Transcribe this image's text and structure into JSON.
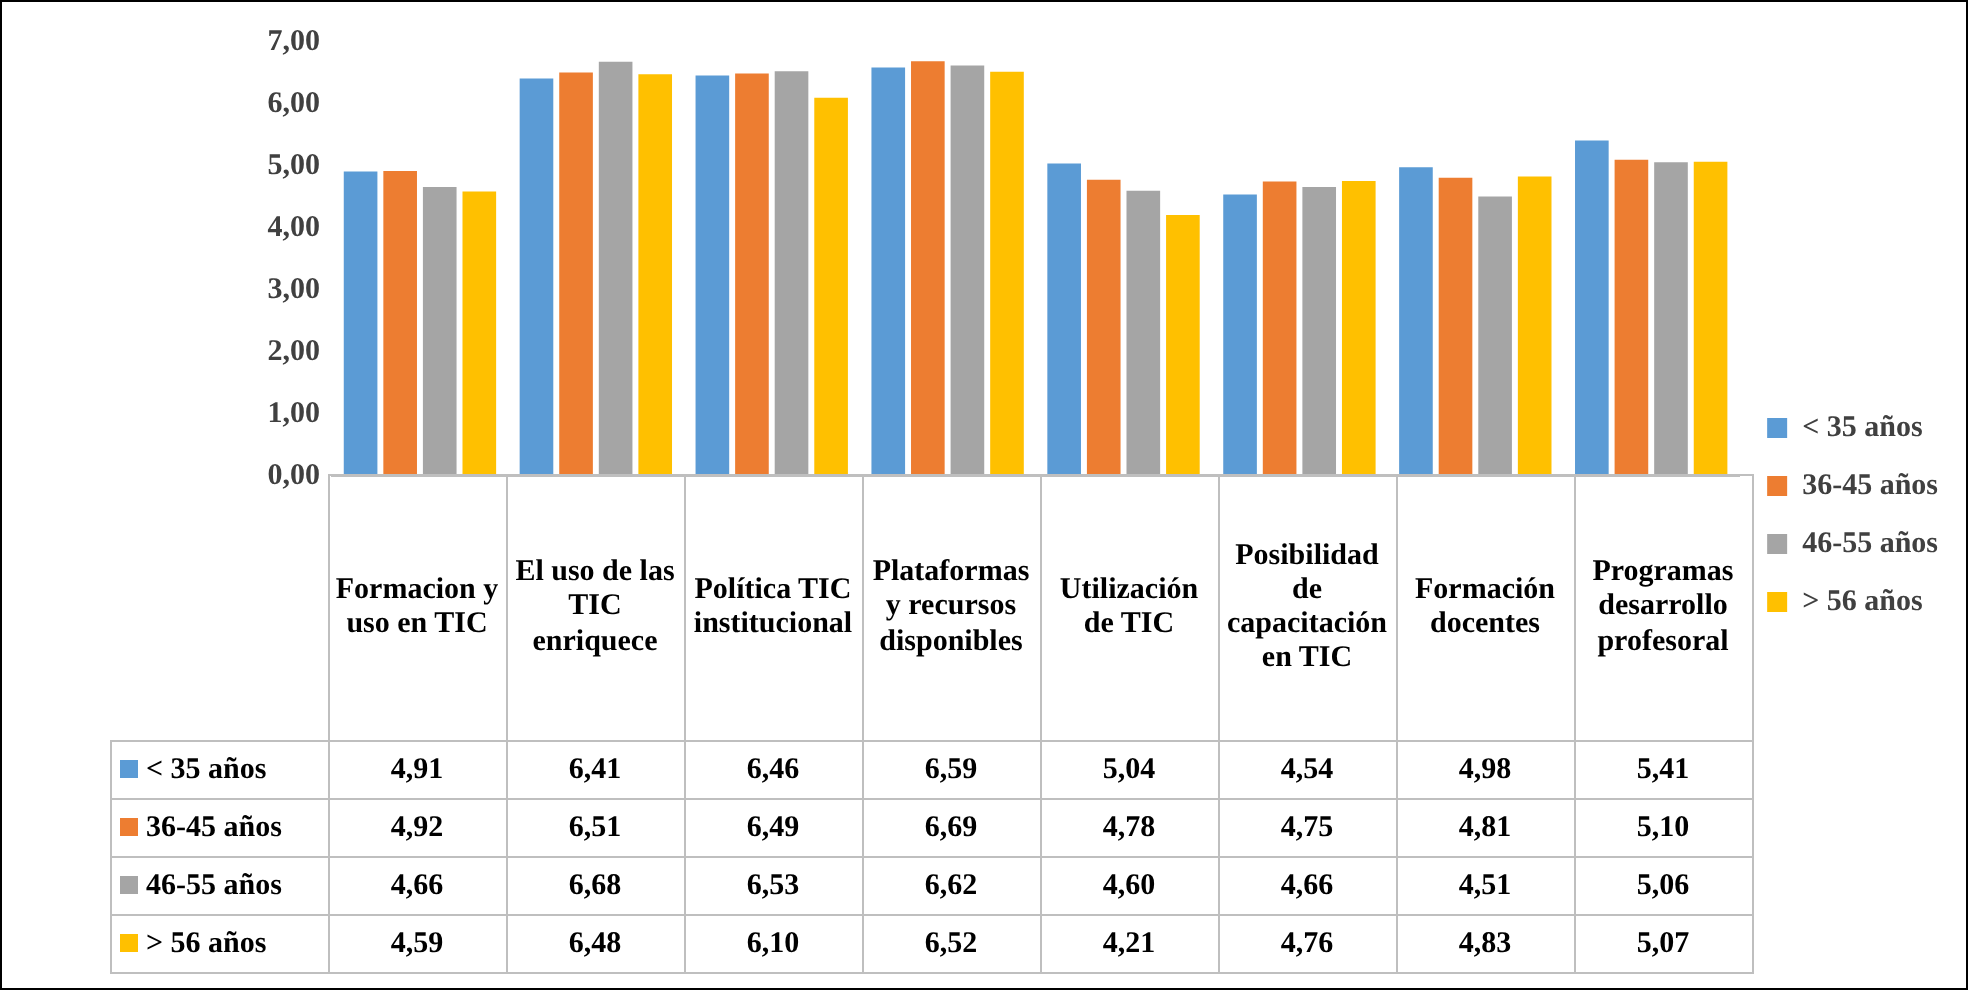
{
  "chart_data": {
    "type": "bar",
    "categories": [
      "Formacion y uso en TIC",
      "El uso de las TIC enriquece",
      "Política TIC institucional",
      "Plataformas y recursos disponibles",
      "Utilización de TIC",
      "Posibilidad de capacitación en TIC",
      "Formación docentes",
      "Programas desarrollo profesoral"
    ],
    "series": [
      {
        "name": "< 35 años",
        "color": "#5b9bd5",
        "values": [
          4.91,
          6.41,
          6.46,
          6.59,
          5.04,
          4.54,
          4.98,
          5.41
        ],
        "value_labels": [
          "4,91",
          "6,41",
          "6,46",
          "6,59",
          "5,04",
          "4,54",
          "4,98",
          "5,41"
        ]
      },
      {
        "name": "36-45 años",
        "color": "#ed7d31",
        "values": [
          4.92,
          6.51,
          6.49,
          6.69,
          4.78,
          4.75,
          4.81,
          5.1
        ],
        "value_labels": [
          "4,92",
          "6,51",
          "6,49",
          "6,69",
          "4,78",
          "4,75",
          "4,81",
          "5,10"
        ]
      },
      {
        "name": "46-55 años",
        "color": "#a5a5a5",
        "values": [
          4.66,
          6.68,
          6.53,
          6.62,
          4.6,
          4.66,
          4.51,
          5.06
        ],
        "value_labels": [
          "4,66",
          "6,68",
          "6,53",
          "6,62",
          "4,60",
          "4,66",
          "4,51",
          "5,06"
        ]
      },
      {
        "name": "> 56 años",
        "color": "#ffc000",
        "values": [
          4.59,
          6.48,
          6.1,
          6.52,
          4.21,
          4.76,
          4.83,
          5.07
        ],
        "value_labels": [
          "4,59",
          "6,48",
          "6,10",
          "6,52",
          "4,21",
          "4,76",
          "4,83",
          "5,07"
        ]
      }
    ],
    "ylim": [
      0,
      7
    ],
    "yticks": [
      {
        "value": 0,
        "label": "0,00"
      },
      {
        "value": 1,
        "label": "1,00"
      },
      {
        "value": 2,
        "label": "2,00"
      },
      {
        "value": 3,
        "label": "3,00"
      },
      {
        "value": 4,
        "label": "4,00"
      },
      {
        "value": 5,
        "label": "5,00"
      },
      {
        "value": 6,
        "label": "6,00"
      },
      {
        "value": 7,
        "label": "7,00"
      }
    ],
    "legend": "right"
  }
}
